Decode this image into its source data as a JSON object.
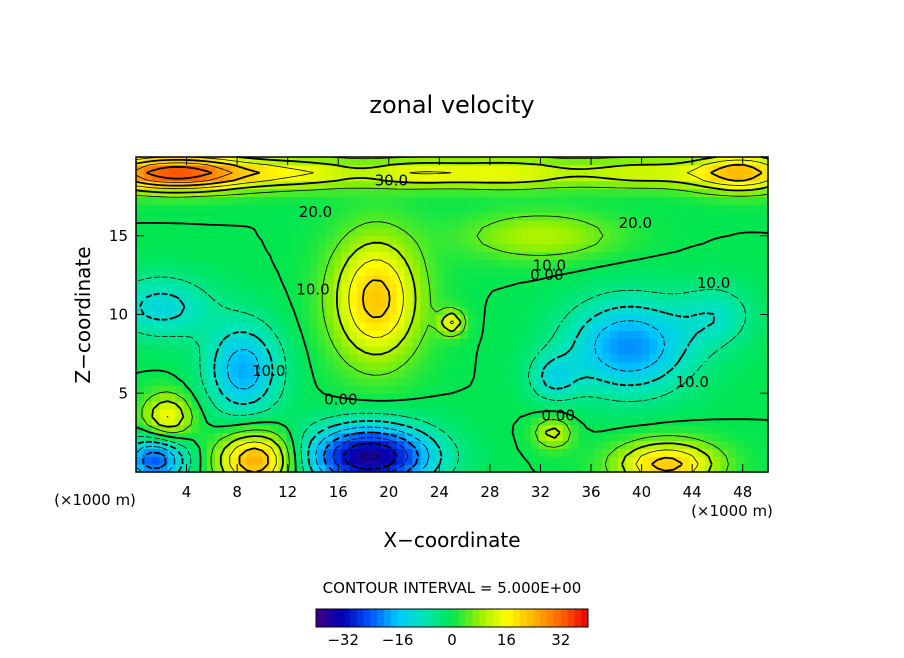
{
  "chart_data": {
    "type": "heatmap",
    "title": "zonal velocity",
    "xlabel": "X−coordinate",
    "ylabel": "Z−coordinate",
    "x_unit_left": "(×1000 m)",
    "x_unit_right": "(×1000 m)",
    "xlim": [
      0,
      50
    ],
    "ylim": [
      0,
      20
    ],
    "x_ticks": [
      4,
      8,
      12,
      16,
      20,
      24,
      28,
      32,
      36,
      40,
      44,
      48
    ],
    "y_ticks": [
      5,
      10,
      15
    ],
    "contour_interval_text": "CONTOUR INTERVAL = 5.000E+00",
    "contour_interval": 5,
    "colorbar": {
      "range": [
        -40,
        40
      ],
      "ticks": [
        -32,
        -16,
        0,
        16,
        32
      ],
      "tick_labels": [
        "−32",
        "−16",
        "0",
        "16",
        "32"
      ],
      "palette": [
        "#3c0080",
        "#0000b4",
        "#0055ff",
        "#00c8ff",
        "#00e6b4",
        "#00e650",
        "#96f000",
        "#ffff00",
        "#ffb400",
        "#ff6400",
        "#e60000"
      ]
    },
    "contour_labels": [
      {
        "text": "30.0",
        "x": 20.2,
        "y": 18.5
      },
      {
        "text": "20.0",
        "x": 14.2,
        "y": 16.5
      },
      {
        "text": "20.0",
        "x": 39.5,
        "y": 15.8
      },
      {
        "text": "10.0",
        "x": 32.7,
        "y": 13.1
      },
      {
        "text": "0.00",
        "x": 32.5,
        "y": 12.5
      },
      {
        "text": "10.0",
        "x": 45.7,
        "y": 12.0
      },
      {
        "text": "10.0",
        "x": 14.0,
        "y": 11.6
      },
      {
        "text": "10.0",
        "x": 10.5,
        "y": 6.4
      },
      {
        "text": "10.0",
        "x": 44.0,
        "y": 5.7
      },
      {
        "text": "0.00",
        "x": 16.2,
        "y": 4.6
      },
      {
        "text": "0.00",
        "x": 33.4,
        "y": 3.6
      }
    ],
    "features": [
      {
        "x": 3,
        "y": 19,
        "value": 34,
        "sx": 6,
        "sz": 1.1
      },
      {
        "x": 13,
        "y": 19,
        "value": 14,
        "sx": 6,
        "sz": 1.0
      },
      {
        "x": 22,
        "y": 19,
        "value": 10,
        "sx": 4,
        "sz": 0.9
      },
      {
        "x": 29,
        "y": 19,
        "value": 14,
        "sx": 6,
        "sz": 1.0
      },
      {
        "x": 40,
        "y": 19,
        "value": 12,
        "sx": 6,
        "sz": 1.0
      },
      {
        "x": 48,
        "y": 19,
        "value": 22,
        "sx": 4,
        "sz": 1.2
      },
      {
        "x": 19,
        "y": 11,
        "value": 22,
        "sx": 3.5,
        "sz": 4
      },
      {
        "x": 32,
        "y": 15,
        "value": 10,
        "sx": 6,
        "sz": 1.5
      },
      {
        "x": 25,
        "y": 9.5,
        "value": 15,
        "sx": 1,
        "sz": 0.8
      },
      {
        "x": 2,
        "y": 10.5,
        "value": -12,
        "sx": 4,
        "sz": 2
      },
      {
        "x": 8.5,
        "y": 6.5,
        "value": -18,
        "sx": 3,
        "sz": 3
      },
      {
        "x": 39,
        "y": 8,
        "value": -20,
        "sx": 5,
        "sz": 3
      },
      {
        "x": 33,
        "y": 6,
        "value": -10,
        "sx": 2,
        "sz": 1.5
      },
      {
        "x": 46,
        "y": 10,
        "value": -8,
        "sx": 3,
        "sz": 2
      },
      {
        "x": 18.5,
        "y": 1,
        "value": -36,
        "sx": 5,
        "sz": 2
      },
      {
        "x": 1.5,
        "y": 0.8,
        "value": -24,
        "sx": 2.5,
        "sz": 1.5
      },
      {
        "x": 9.5,
        "y": 0.8,
        "value": 26,
        "sx": 3,
        "sz": 1.8
      },
      {
        "x": 2.5,
        "y": 3.5,
        "value": 16,
        "sx": 2,
        "sz": 1.5
      },
      {
        "x": 42,
        "y": 0.5,
        "value": 22,
        "sx": 4,
        "sz": 1.5
      },
      {
        "x": 33,
        "y": 2.5,
        "value": 12,
        "sx": 1.5,
        "sz": 1
      }
    ],
    "background_value": 0,
    "grid": false,
    "legend": "bottom-center"
  }
}
